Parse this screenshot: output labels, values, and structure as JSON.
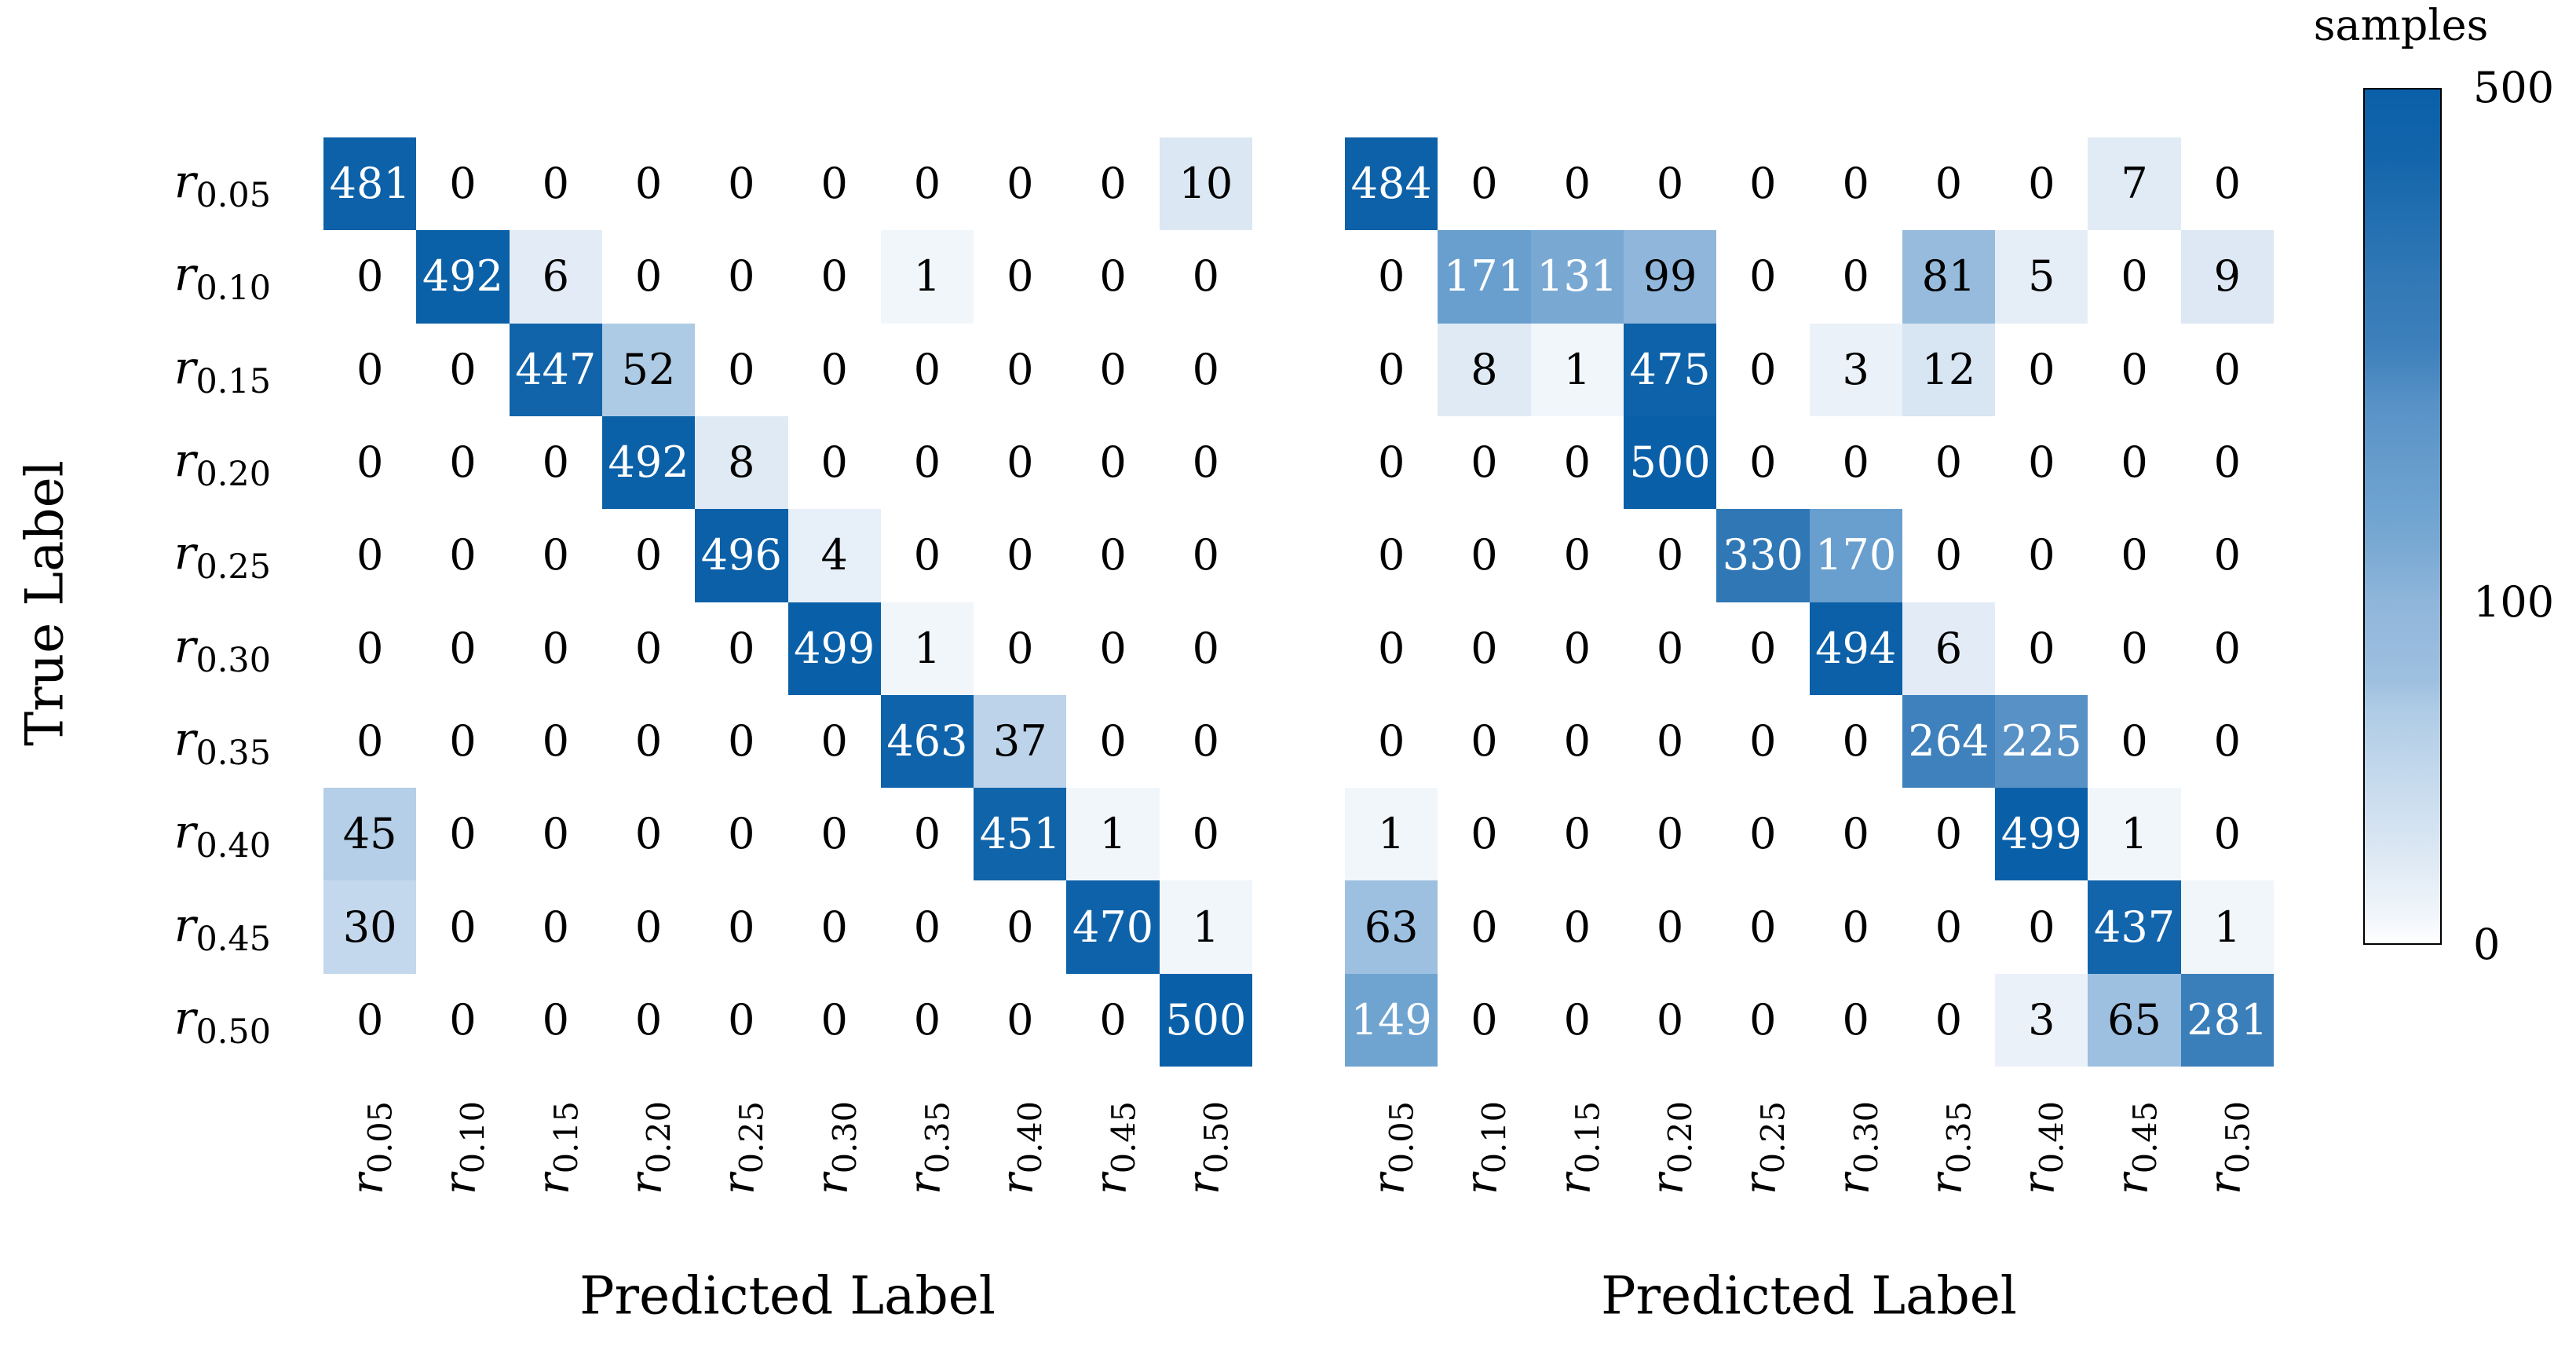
{
  "chart_data": {
    "type": "heatmap",
    "subtype": "confusion-matrix-pair",
    "row_axis_label": "True Label",
    "category_prefix": "r",
    "categories": [
      "0.05",
      "0.10",
      "0.15",
      "0.20",
      "0.25",
      "0.30",
      "0.35",
      "0.40",
      "0.45",
      "0.50"
    ],
    "vmin": 0,
    "vmax": 500,
    "norm": {
      "type": "power",
      "gamma": 0.57
    },
    "colormap": {
      "name": "blues",
      "stops": [
        [
          0.0,
          "#ffffff"
        ],
        [
          0.03,
          "#f1f6fb"
        ],
        [
          0.108,
          "#dbe7f3"
        ],
        [
          0.201,
          "#c3d8ec"
        ],
        [
          0.275,
          "#aecbe5"
        ],
        [
          0.307,
          "#9ec0e0"
        ],
        [
          0.397,
          "#90b6db"
        ],
        [
          0.466,
          "#79a9d3"
        ],
        [
          0.502,
          "#70a4d0"
        ],
        [
          0.543,
          "#699fce"
        ],
        [
          0.634,
          "#5791c6"
        ],
        [
          0.695,
          "#3e81bc"
        ],
        [
          0.789,
          "#2f77b5"
        ],
        [
          0.92,
          "#1365ab"
        ],
        [
          1.0,
          "#0a60a8"
        ]
      ],
      "white_text_threshold": 0.43
    },
    "matrices": [
      {
        "name": "left",
        "xlabel": "Predicted Label",
        "values": [
          [
            481,
            0,
            0,
            0,
            0,
            0,
            0,
            0,
            0,
            10
          ],
          [
            0,
            492,
            6,
            0,
            0,
            0,
            1,
            0,
            0,
            0
          ],
          [
            0,
            0,
            447,
            52,
            0,
            0,
            0,
            0,
            0,
            0
          ],
          [
            0,
            0,
            0,
            492,
            8,
            0,
            0,
            0,
            0,
            0
          ],
          [
            0,
            0,
            0,
            0,
            496,
            4,
            0,
            0,
            0,
            0
          ],
          [
            0,
            0,
            0,
            0,
            0,
            499,
            1,
            0,
            0,
            0
          ],
          [
            0,
            0,
            0,
            0,
            0,
            0,
            463,
            37,
            0,
            0
          ],
          [
            45,
            0,
            0,
            0,
            0,
            0,
            0,
            451,
            1,
            0
          ],
          [
            30,
            0,
            0,
            0,
            0,
            0,
            0,
            0,
            470,
            1
          ],
          [
            0,
            0,
            0,
            0,
            0,
            0,
            0,
            0,
            0,
            500
          ]
        ]
      },
      {
        "name": "right",
        "xlabel": "Predicted Label",
        "values": [
          [
            484,
            0,
            0,
            0,
            0,
            0,
            0,
            0,
            7,
            0
          ],
          [
            0,
            171,
            131,
            99,
            0,
            0,
            81,
            5,
            0,
            9
          ],
          [
            0,
            8,
            1,
            475,
            0,
            3,
            12,
            0,
            0,
            0
          ],
          [
            0,
            0,
            0,
            500,
            0,
            0,
            0,
            0,
            0,
            0
          ],
          [
            0,
            0,
            0,
            0,
            330,
            170,
            0,
            0,
            0,
            0
          ],
          [
            0,
            0,
            0,
            0,
            0,
            494,
            6,
            0,
            0,
            0
          ],
          [
            0,
            0,
            0,
            0,
            0,
            0,
            264,
            225,
            0,
            0
          ],
          [
            1,
            0,
            0,
            0,
            0,
            0,
            0,
            499,
            1,
            0
          ],
          [
            63,
            0,
            0,
            0,
            0,
            0,
            0,
            0,
            437,
            1
          ],
          [
            149,
            0,
            0,
            0,
            0,
            0,
            0,
            3,
            65,
            281
          ]
        ]
      }
    ],
    "colorbar": {
      "title": "samples",
      "position": "right",
      "ticks": [
        500,
        100,
        0
      ],
      "tick_positions": [
        1.0,
        0.3996,
        0.0
      ]
    }
  }
}
